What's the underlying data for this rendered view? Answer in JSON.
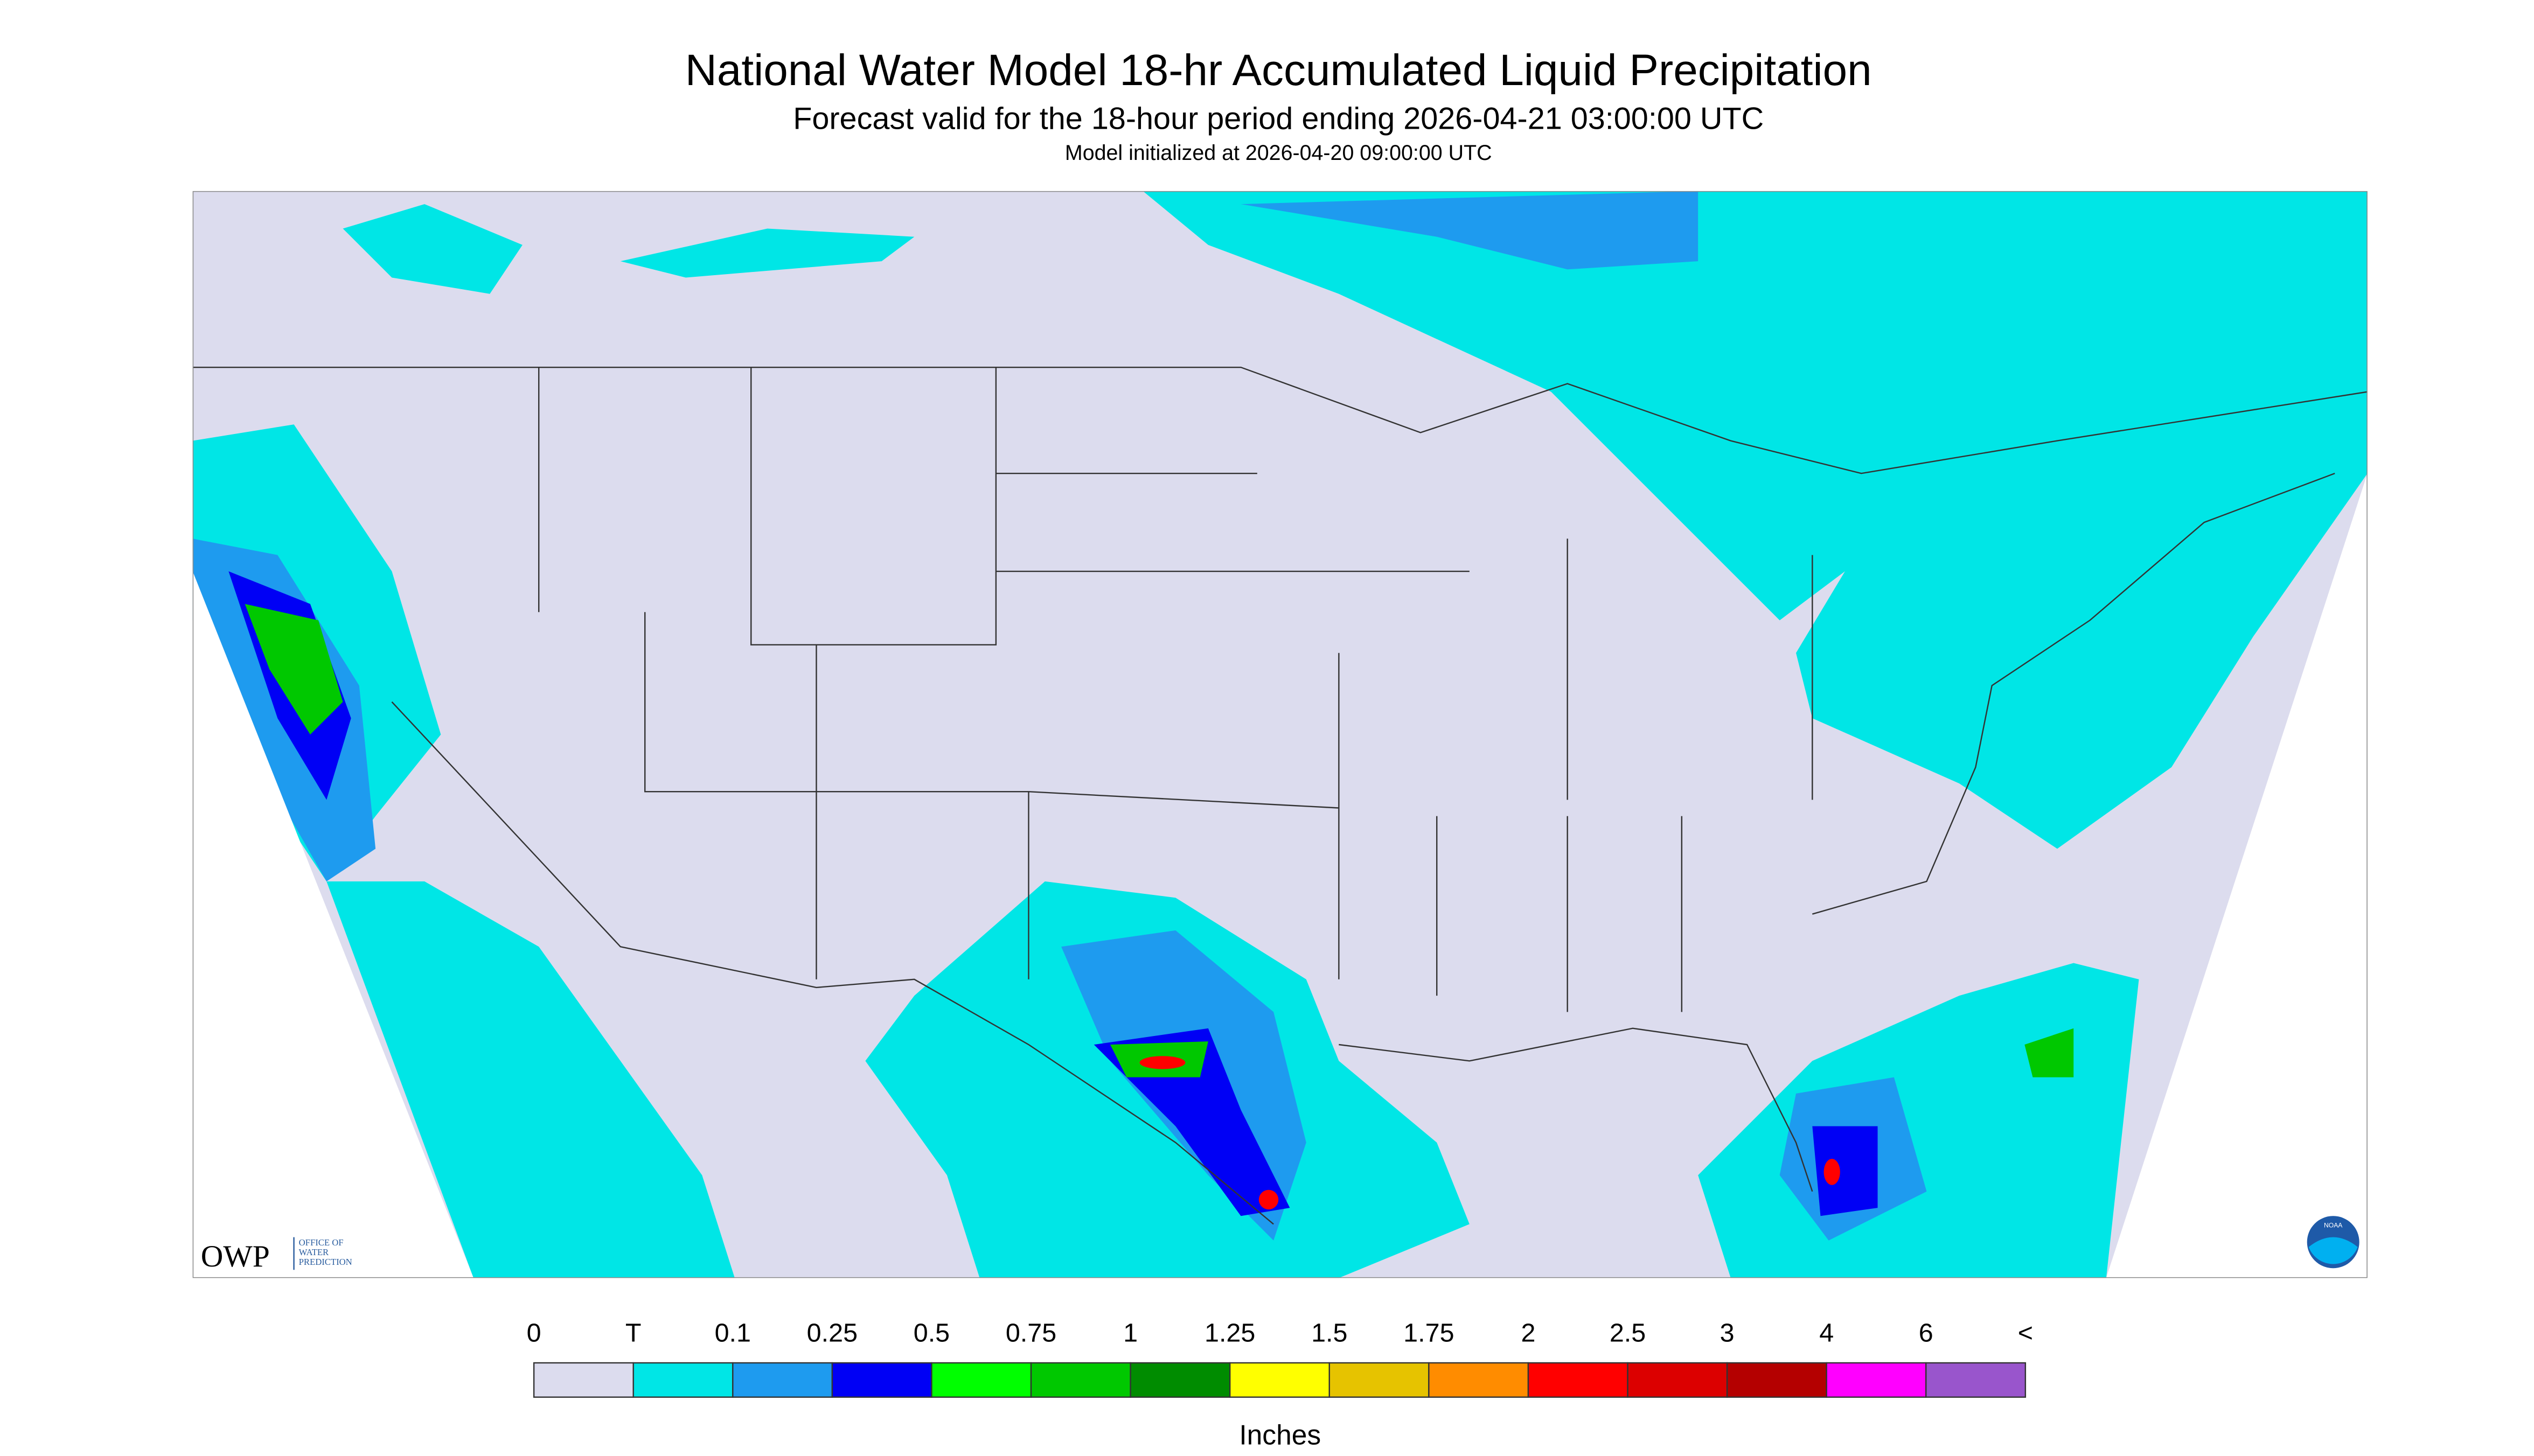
{
  "header": {
    "title": "National Water Model 18-hr Accumulated Liquid Precipitation",
    "subtitle": "Forecast valid for the 18-hour period ending 2026-04-21 03:00:00 UTC",
    "init": "Model initialized at 2026-04-20 09:00:00 UTC"
  },
  "logos": {
    "owp": "OWP",
    "owp_name": [
      "OFFICE OF",
      "WATER",
      "PREDICTION"
    ],
    "noaa": "NOAA"
  },
  "legend": {
    "labels": [
      "0",
      "T",
      "0.1",
      "0.25",
      "0.5",
      "0.75",
      "1",
      "1.25",
      "1.5",
      "1.75",
      "2",
      "2.5",
      "3",
      "4",
      "6",
      "<"
    ],
    "colors": [
      "#dcdcee",
      "#00e6e6",
      "#1e9bef",
      "#0000f5",
      "#00ff00",
      "#00c800",
      "#008c00",
      "#ffff00",
      "#e6c300",
      "#ff8c00",
      "#ff0000",
      "#dc0000",
      "#b40000",
      "#ff00ff",
      "#9955cc"
    ],
    "units": "Inches"
  }
}
